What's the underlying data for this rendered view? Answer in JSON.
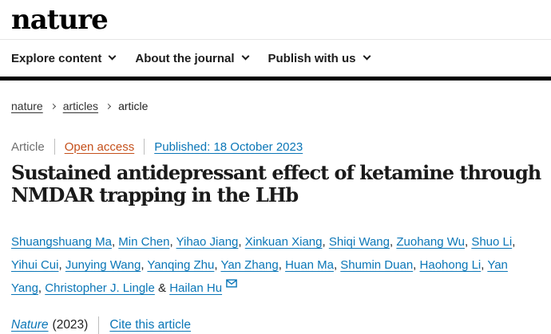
{
  "header": {
    "logo": "nature",
    "nav": [
      {
        "label": "Explore content"
      },
      {
        "label": "About the journal"
      },
      {
        "label": "Publish with us"
      }
    ]
  },
  "breadcrumb": [
    {
      "label": "nature",
      "link": true
    },
    {
      "label": "articles",
      "link": true
    },
    {
      "label": "article",
      "link": false
    }
  ],
  "meta": {
    "type_label": "Article",
    "open_access": "Open access",
    "published": "Published: 18 October 2023"
  },
  "title": {
    "full": "Sustained antidepressant effect of ketamine through NMDAR trapping in the LHb",
    "line1": "Sustained antidepressant effect of ketamine through",
    "line2": "NMDAR trapping in the LHb"
  },
  "authors": {
    "names": [
      "Shuangshuang Ma",
      "Min Chen",
      "Yihao Jiang",
      "Xinkuan Xiang",
      "Shiqi Wang",
      "Zuohang Wu",
      "Shuo Li",
      "Yihui Cui",
      "Junying Wang",
      "Yanqing Zhu",
      "Yan Zhang",
      "Huan Ma",
      "Shumin Duan",
      "Haohong Li",
      "Yan Yang",
      "Christopher J. Lingle",
      "Hailan Hu"
    ],
    "separator": ", ",
    "final_joiner": " & ",
    "email_icon": "envelope-icon"
  },
  "citation": {
    "journal": "Nature",
    "year_text": "(2023)",
    "cite_link": "Cite this article"
  },
  "colors": {
    "link_blue": "#0a76b7",
    "open_access_orange": "#c5501b",
    "text_dark": "#222222",
    "gray_label": "#6f6f6f",
    "header_bar_black": "#000000",
    "divider_gray": "#e6e6e6"
  }
}
